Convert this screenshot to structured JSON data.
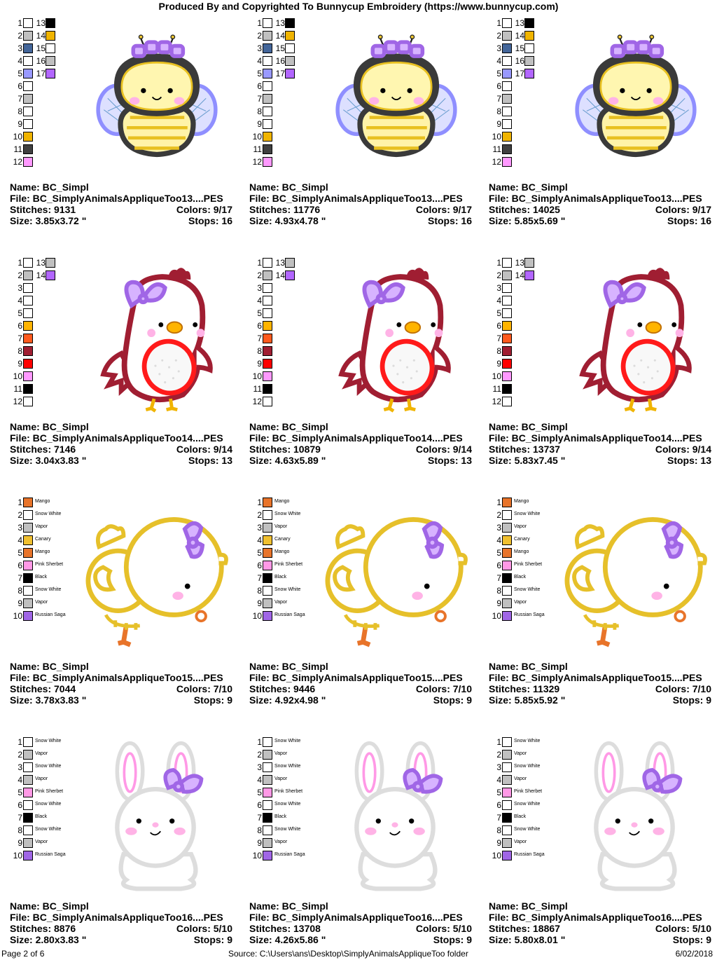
{
  "header": {
    "title": "Produced By and Copyrighted To Bunnycup Embroidery (https://www.bunnycup.com)"
  },
  "footer": {
    "page": "Page 2 of 6",
    "source": "Source: C:\\Users\\ans\\Desktop\\SimplyAnimalsAppliqueToo folder",
    "date": "6/02/2018"
  },
  "colors": {
    "white": "#ffffff",
    "gray": "#c0c0c0",
    "slate": "#44669a",
    "periwinkle": "#9999ff",
    "lilac": "#b266ff",
    "gold": "#f0b400",
    "charcoal": "#404040",
    "pink": "#ff99ff",
    "black": "#000000",
    "orange": "#ffb400",
    "redorange": "#ff5a1e",
    "maroon": "#a01e32",
    "red": "#ff0000",
    "mango": "#e8742a",
    "canary": "#f0c030",
    "sherbet": "#ff99e6",
    "saga": "#a066e6"
  },
  "rows": [
    {
      "animal": "bee",
      "legend_type": "numbered",
      "legend": [
        {
          "n": "1",
          "c": "white",
          "n2": "13",
          "c2": "black"
        },
        {
          "n": "2",
          "c": "gray",
          "n2": "14",
          "c2": "gold"
        },
        {
          "n": "3",
          "c": "slate",
          "n2": "15",
          "c2": "white"
        },
        {
          "n": "4",
          "c": "white",
          "n2": "16",
          "c2": "gray"
        },
        {
          "n": "5",
          "c": "periwinkle",
          "n2": "17",
          "c2": "lilac"
        },
        {
          "n": "6",
          "c": "white"
        },
        {
          "n": "7",
          "c": "gray"
        },
        {
          "n": "8",
          "c": "white"
        },
        {
          "n": "9",
          "c": "white"
        },
        {
          "n": "10",
          "c": "gold"
        },
        {
          "n": "11",
          "c": "charcoal"
        },
        {
          "n": "12",
          "c": "pink"
        }
      ],
      "designs": [
        {
          "name": "Name: BC_Simpl",
          "file": "File: BC_SimplyAnimalsAppliqueToo13....PES",
          "stitches": "Stitches: 9131",
          "colors": "Colors: 9/17",
          "size": "Size: 3.85x3.72 \"",
          "stops": "Stops: 16"
        },
        {
          "name": "Name: BC_Simpl",
          "file": "File: BC_SimplyAnimalsAppliqueToo13....PES",
          "stitches": "Stitches: 11776",
          "colors": "Colors: 9/17",
          "size": "Size: 4.93x4.78 \"",
          "stops": "Stops: 16"
        },
        {
          "name": "Name: BC_Simpl",
          "file": "File: BC_SimplyAnimalsAppliqueToo13....PES",
          "stitches": "Stitches: 14025",
          "colors": "Colors: 9/17",
          "size": "Size: 5.85x5.69 \"",
          "stops": "Stops: 16"
        }
      ]
    },
    {
      "animal": "bird",
      "legend_type": "numbered",
      "legend": [
        {
          "n": "1",
          "c": "white",
          "n2": "13",
          "c2": "gray"
        },
        {
          "n": "2",
          "c": "gray",
          "n2": "14",
          "c2": "lilac"
        },
        {
          "n": "3",
          "c": "white"
        },
        {
          "n": "4",
          "c": "white"
        },
        {
          "n": "5",
          "c": "white"
        },
        {
          "n": "6",
          "c": "orange"
        },
        {
          "n": "7",
          "c": "redorange"
        },
        {
          "n": "8",
          "c": "maroon"
        },
        {
          "n": "9",
          "c": "red"
        },
        {
          "n": "10",
          "c": "pink"
        },
        {
          "n": "11",
          "c": "black"
        },
        {
          "n": "12",
          "c": "white"
        }
      ],
      "designs": [
        {
          "name": "Name: BC_Simpl",
          "file": "File: BC_SimplyAnimalsAppliqueToo14....PES",
          "stitches": "Stitches: 7146",
          "colors": "Colors: 9/14",
          "size": "Size: 3.04x3.83 \"",
          "stops": "Stops: 13"
        },
        {
          "name": "Name: BC_Simpl",
          "file": "File: BC_SimplyAnimalsAppliqueToo14....PES",
          "stitches": "Stitches: 10879",
          "colors": "Colors: 9/14",
          "size": "Size: 4.63x5.89 \"",
          "stops": "Stops: 13"
        },
        {
          "name": "Name: BC_Simpl",
          "file": "File: BC_SimplyAnimalsAppliqueToo14....PES",
          "stitches": "Stitches: 13737",
          "colors": "Colors: 9/14",
          "size": "Size: 5.83x7.45 \"",
          "stops": "Stops: 13"
        }
      ]
    },
    {
      "animal": "chick",
      "legend_type": "named",
      "legend": [
        {
          "n": "1",
          "c": "mango",
          "label": "Mango"
        },
        {
          "n": "2",
          "c": "white",
          "label": "Snow White"
        },
        {
          "n": "3",
          "c": "gray",
          "label": "Vapor"
        },
        {
          "n": "4",
          "c": "canary",
          "label": "Canary"
        },
        {
          "n": "5",
          "c": "mango",
          "label": "Mango"
        },
        {
          "n": "6",
          "c": "sherbet",
          "label": "Pink Sherbet"
        },
        {
          "n": "7",
          "c": "black",
          "label": "Black"
        },
        {
          "n": "8",
          "c": "white",
          "label": "Snow White"
        },
        {
          "n": "9",
          "c": "gray",
          "label": "Vapor"
        },
        {
          "n": "10",
          "c": "saga",
          "label": "Russian Saga"
        }
      ],
      "designs": [
        {
          "name": "Name: BC_Simpl",
          "file": "File: BC_SimplyAnimalsAppliqueToo15....PES",
          "stitches": "Stitches: 7044",
          "colors": "Colors: 7/10",
          "size": "Size: 3.78x3.83 \"",
          "stops": "Stops: 9"
        },
        {
          "name": "Name: BC_Simpl",
          "file": "File: BC_SimplyAnimalsAppliqueToo15....PES",
          "stitches": "Stitches: 9446",
          "colors": "Colors: 7/10",
          "size": "Size: 4.92x4.98 \"",
          "stops": "Stops: 9"
        },
        {
          "name": "Name: BC_Simpl",
          "file": "File: BC_SimplyAnimalsAppliqueToo15....PES",
          "stitches": "Stitches: 11329",
          "colors": "Colors: 7/10",
          "size": "Size: 5.85x5.92 \"",
          "stops": "Stops: 9"
        }
      ]
    },
    {
      "animal": "bunny",
      "legend_type": "named",
      "legend": [
        {
          "n": "1",
          "c": "white",
          "label": "Snow White"
        },
        {
          "n": "2",
          "c": "gray",
          "label": "Vapor"
        },
        {
          "n": "3",
          "c": "white",
          "label": "Snow White"
        },
        {
          "n": "4",
          "c": "gray",
          "label": "Vapor"
        },
        {
          "n": "5",
          "c": "sherbet",
          "label": "Pink Sherbet"
        },
        {
          "n": "6",
          "c": "white",
          "label": "Snow White"
        },
        {
          "n": "7",
          "c": "black",
          "label": "Black"
        },
        {
          "n": "8",
          "c": "white",
          "label": "Snow White"
        },
        {
          "n": "9",
          "c": "gray",
          "label": "Vapor"
        },
        {
          "n": "10",
          "c": "saga",
          "label": "Russian Saga"
        }
      ],
      "designs": [
        {
          "name": "Name: BC_Simpl",
          "file": "File: BC_SimplyAnimalsAppliqueToo16....PES",
          "stitches": "Stitches: 8876",
          "colors": "Colors: 5/10",
          "size": "Size: 2.80x3.83 \"",
          "stops": "Stops: 9"
        },
        {
          "name": "Name: BC_Simpl",
          "file": "File: BC_SimplyAnimalsAppliqueToo16....PES",
          "stitches": "Stitches: 13708",
          "colors": "Colors: 5/10",
          "size": "Size: 4.26x5.86 \"",
          "stops": "Stops: 9"
        },
        {
          "name": "Name: BC_Simpl",
          "file": "File: BC_SimplyAnimalsAppliqueToo16....PES",
          "stitches": "Stitches: 18867",
          "colors": "Colors: 5/10",
          "size": "Size: 5.80x8.01 \"",
          "stops": "Stops: 9"
        }
      ]
    }
  ]
}
